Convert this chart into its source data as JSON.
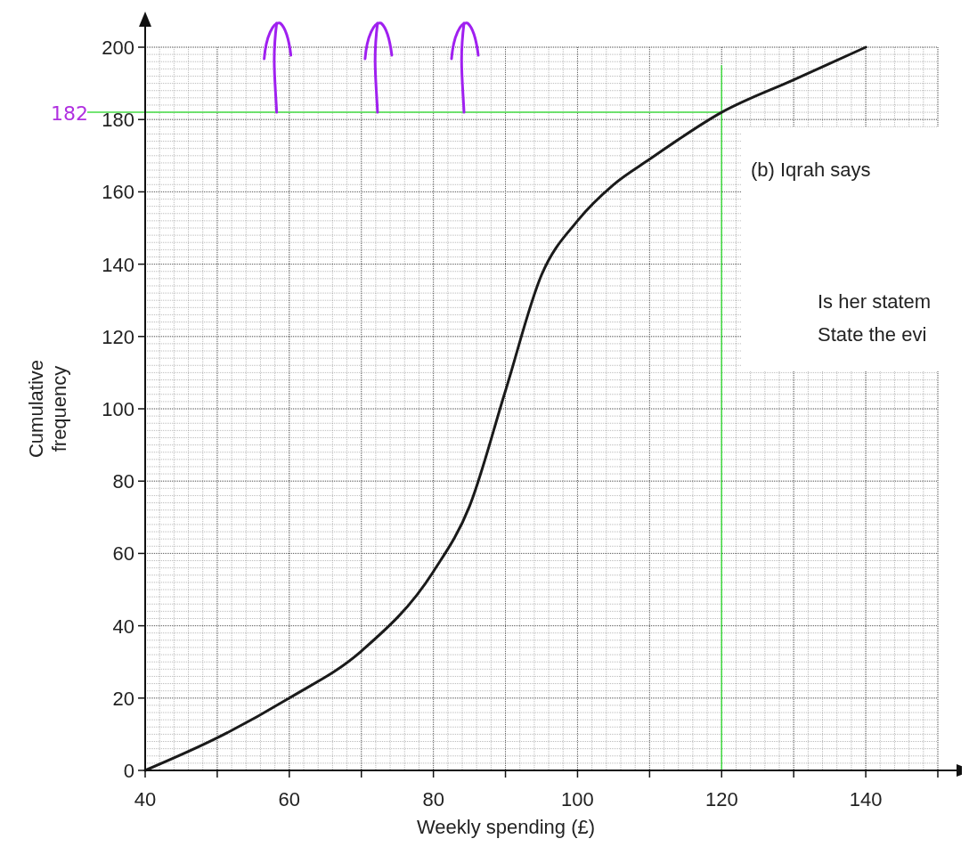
{
  "chart_data": {
    "type": "line",
    "xlabel": "Weekly spending (£)",
    "ylabel": "Cumulative frequency",
    "x": [
      40,
      50,
      60,
      70,
      80,
      85,
      90,
      95,
      100,
      105,
      110,
      120,
      130,
      140
    ],
    "series": [
      {
        "color": "#1a1a1a",
        "values": [
          0,
          9,
          20,
          33,
          55,
          73,
          105,
          137,
          152,
          162,
          169,
          182,
          191,
          200
        ]
      }
    ],
    "xlim": [
      40,
      150
    ],
    "ylim": [
      0,
      200
    ],
    "xticks": [
      40,
      {
        "value": 50,
        "label": null
      },
      60,
      {
        "value": 70,
        "label": null
      },
      80,
      {
        "value": 90,
        "label": null
      },
      100,
      {
        "value": 110,
        "label": null
      },
      120,
      {
        "value": 130,
        "label": null
      },
      140,
      {
        "value": 150,
        "label": null
      }
    ],
    "yticks": [
      0,
      20,
      40,
      60,
      80,
      100,
      120,
      140,
      160,
      180,
      200
    ],
    "grid": true,
    "marker": "none",
    "line_style": "solid",
    "ref_lines": [
      {
        "axis": "y",
        "value": 182,
        "label": "182",
        "color": "#44dd44"
      },
      {
        "axis": "x",
        "value": 120,
        "label": null,
        "color": "#44dd44"
      }
    ],
    "annotations": [
      "(b) Iqrah says",
      "Is her statem",
      "State the evi"
    ]
  }
}
